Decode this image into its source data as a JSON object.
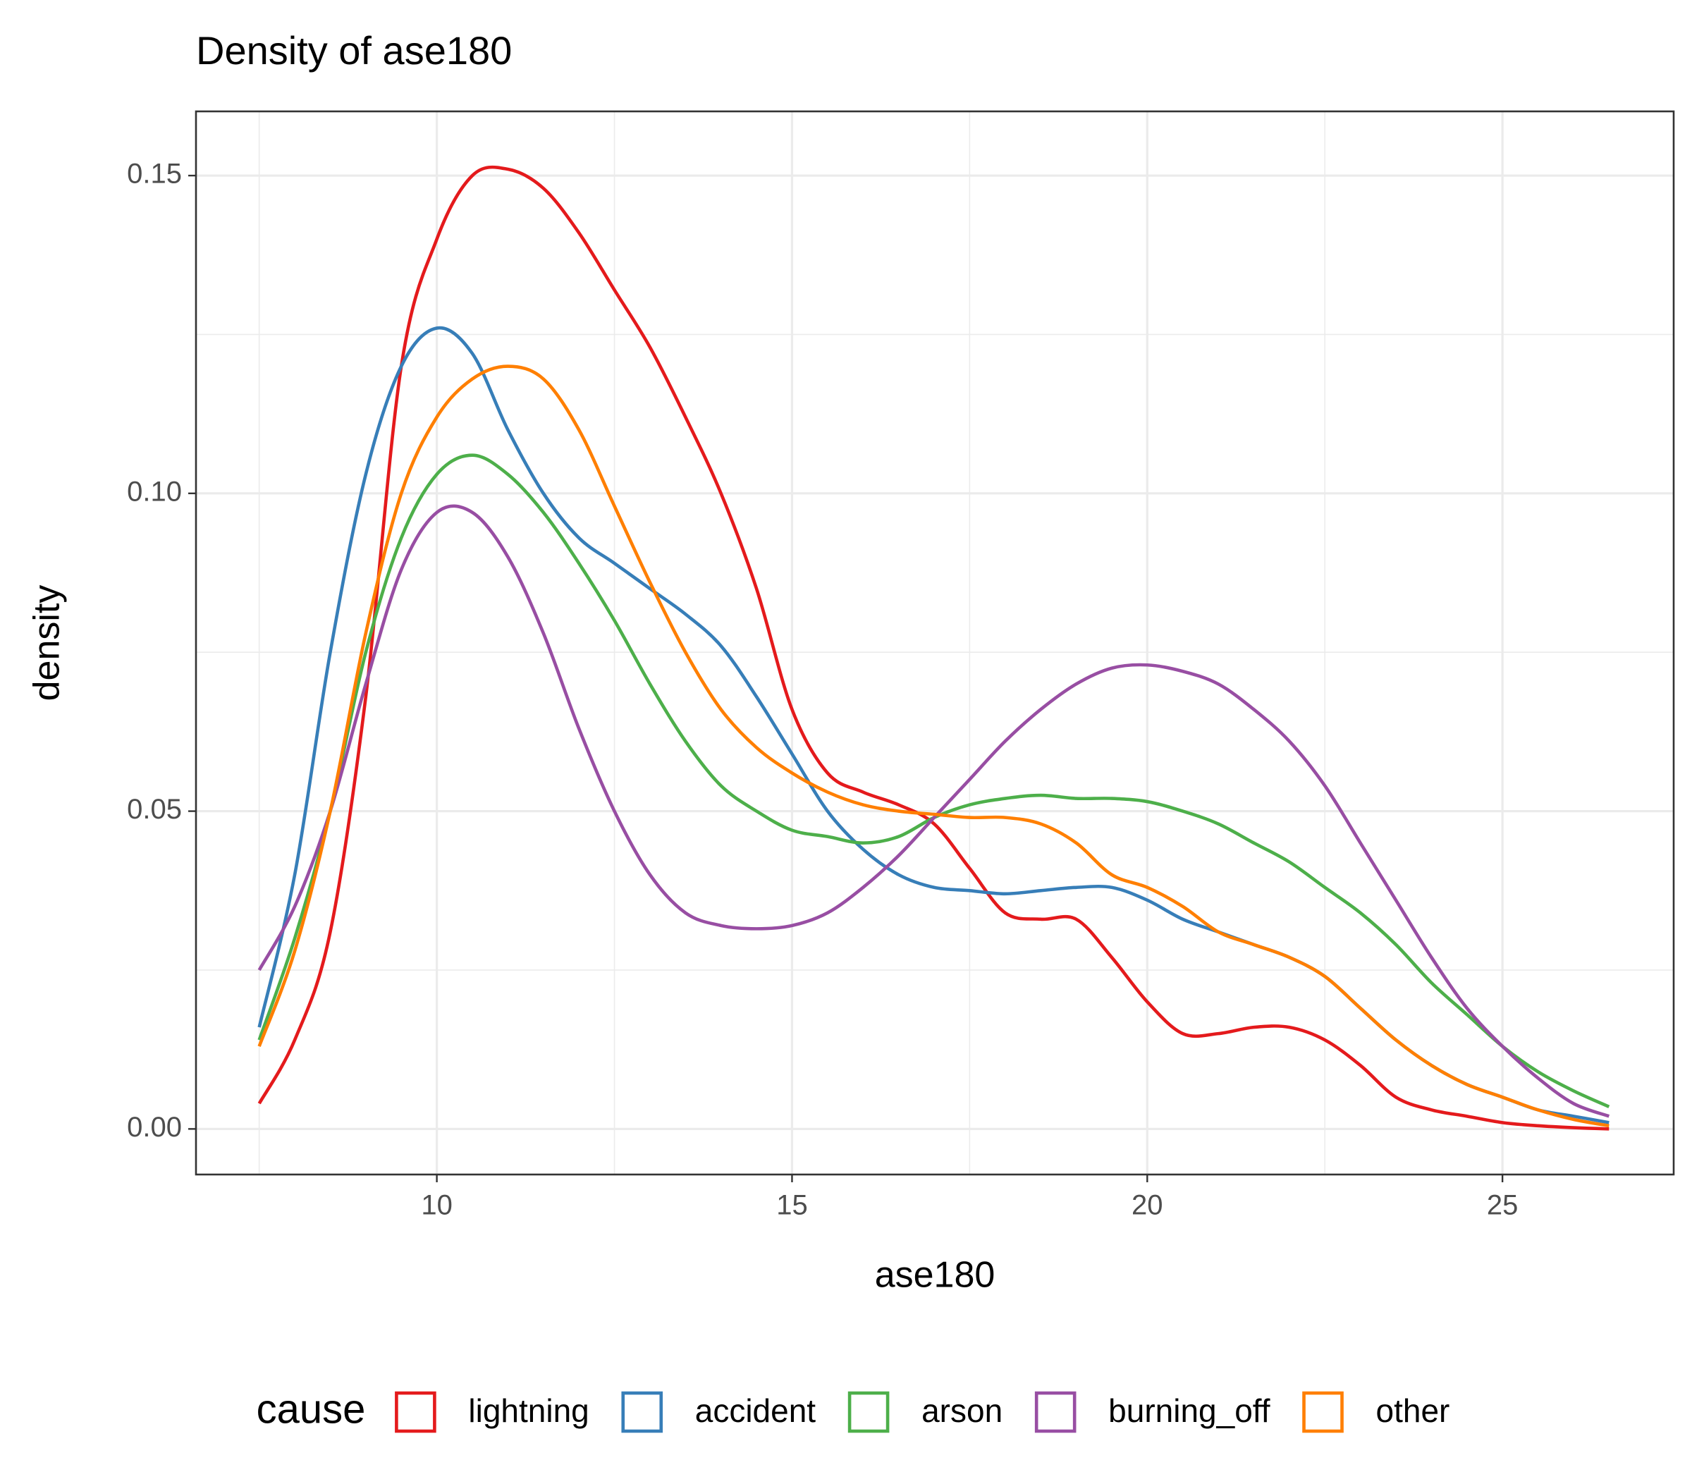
{
  "chart_data": {
    "type": "density",
    "title": "Density of ase180",
    "xlabel": "ase180",
    "ylabel": "density",
    "legend_title": "cause",
    "legend_position": "bottom",
    "grid": true,
    "xlim": [
      6.61,
      27.41
    ],
    "ylim": [
      -0.00717,
      0.1601
    ],
    "xticks": [
      10,
      15,
      20,
      25
    ],
    "yticks": [
      {
        "value": 0,
        "label": "0.00"
      },
      {
        "value": 0.05,
        "label": "0.05"
      },
      {
        "value": 0.1,
        "label": "0.10"
      },
      {
        "value": 0.15,
        "label": "0.15"
      }
    ],
    "x": [
      7.5,
      8,
      8.5,
      9,
      9.5,
      10,
      10.5,
      11,
      11.5,
      12,
      12.5,
      13,
      13.5,
      14,
      14.5,
      15,
      15.5,
      16,
      16.5,
      17,
      17.5,
      18,
      18.5,
      19,
      19.5,
      20,
      20.5,
      21,
      21.5,
      22,
      22.5,
      23,
      23.5,
      24,
      24.5,
      25,
      25.5,
      26,
      26.5
    ],
    "series": [
      {
        "name": "lightning",
        "color": "#e41a1c",
        "values": [
          0.004,
          0.014,
          0.031,
          0.068,
          0.12,
          0.14,
          0.15,
          0.151,
          0.148,
          0.141,
          0.132,
          0.123,
          0.112,
          0.1,
          0.085,
          0.066,
          0.056,
          0.053,
          0.051,
          0.048,
          0.041,
          0.034,
          0.033,
          0.033,
          0.027,
          0.02,
          0.015,
          0.015,
          0.016,
          0.016,
          0.014,
          0.01,
          0.005,
          0.003,
          0.002,
          0.001,
          0.0005,
          0.0002,
          0
        ]
      },
      {
        "name": "accident",
        "color": "#377eb8",
        "values": [
          0.016,
          0.04,
          0.075,
          0.103,
          0.12,
          0.126,
          0.122,
          0.11,
          0.1,
          0.093,
          0.089,
          0.085,
          0.081,
          0.076,
          0.068,
          0.059,
          0.05,
          0.044,
          0.04,
          0.038,
          0.0375,
          0.037,
          0.0375,
          0.038,
          0.038,
          0.036,
          0.033,
          0.031,
          0.029,
          0.027,
          0.024,
          0.019,
          0.014,
          0.01,
          0.007,
          0.005,
          0.003,
          0.002,
          0.001
        ]
      },
      {
        "name": "arson",
        "color": "#4daf4a",
        "values": [
          0.014,
          0.03,
          0.05,
          0.075,
          0.093,
          0.103,
          0.106,
          0.103,
          0.097,
          0.089,
          0.08,
          0.07,
          0.061,
          0.054,
          0.05,
          0.047,
          0.046,
          0.045,
          0.046,
          0.049,
          0.051,
          0.052,
          0.0525,
          0.052,
          0.052,
          0.0515,
          0.05,
          0.048,
          0.045,
          0.042,
          0.038,
          0.034,
          0.029,
          0.023,
          0.018,
          0.013,
          0.009,
          0.006,
          0.0035
        ]
      },
      {
        "name": "burning_off",
        "color": "#984ea3",
        "values": [
          0.025,
          0.035,
          0.05,
          0.07,
          0.088,
          0.097,
          0.097,
          0.09,
          0.078,
          0.063,
          0.05,
          0.04,
          0.034,
          0.032,
          0.0315,
          0.032,
          0.034,
          0.038,
          0.043,
          0.049,
          0.055,
          0.061,
          0.066,
          0.07,
          0.0725,
          0.073,
          0.072,
          0.07,
          0.066,
          0.061,
          0.054,
          0.045,
          0.036,
          0.027,
          0.019,
          0.013,
          0.008,
          0.004,
          0.002
        ]
      },
      {
        "name": "other",
        "color": "#ff7f00",
        "values": [
          0.013,
          0.028,
          0.05,
          0.078,
          0.1,
          0.112,
          0.118,
          0.12,
          0.118,
          0.11,
          0.098,
          0.086,
          0.075,
          0.066,
          0.06,
          0.056,
          0.053,
          0.051,
          0.05,
          0.0495,
          0.049,
          0.049,
          0.048,
          0.045,
          0.04,
          0.038,
          0.035,
          0.031,
          0.029,
          0.027,
          0.024,
          0.019,
          0.014,
          0.01,
          0.007,
          0.005,
          0.003,
          0.0015,
          0.0005
        ]
      }
    ]
  }
}
